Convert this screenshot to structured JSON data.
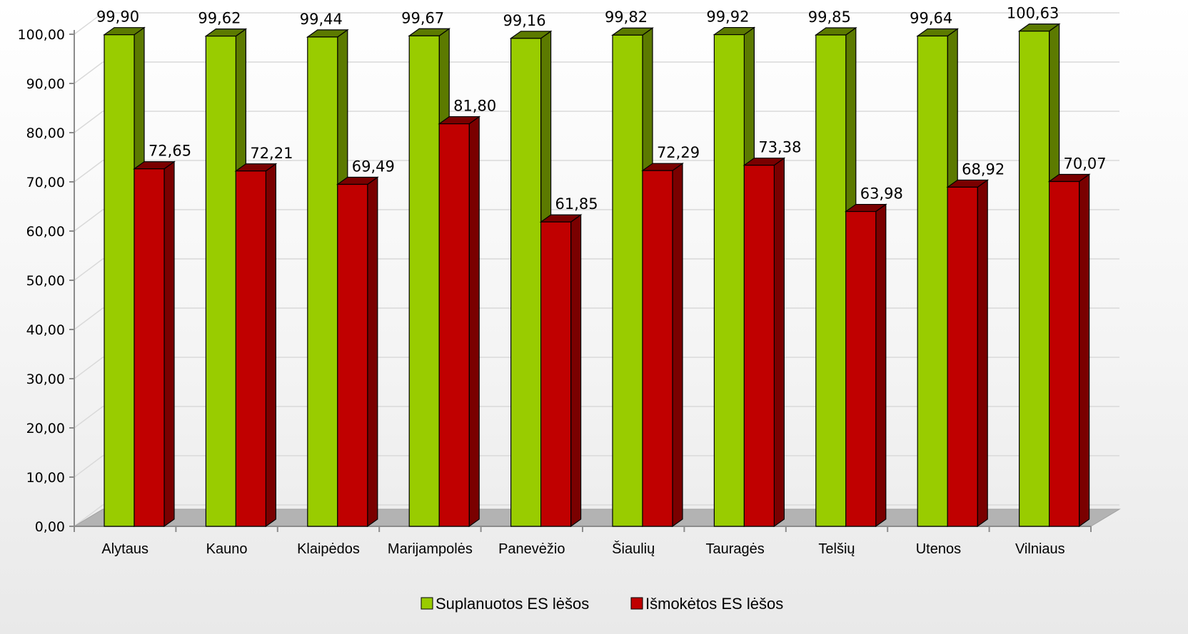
{
  "chart_data": {
    "type": "bar",
    "bar_style": "3d-clustered",
    "categories": [
      "Alytaus",
      "Kauno",
      "Klaipėdos",
      "Marijampolės",
      "Panevėžio",
      "Šiaulių",
      "Tauragės",
      "Telšių",
      "Utenos",
      "Vilniaus"
    ],
    "series": [
      {
        "name": "Suplanuotos ES lėšos",
        "color": "#99cc00",
        "side_color": "#5c7a00",
        "values": [
          99.9,
          99.62,
          99.44,
          99.67,
          99.16,
          99.82,
          99.92,
          99.85,
          99.64,
          100.63
        ],
        "labels": [
          "99,90",
          "99,62",
          "99,44",
          "99,67",
          "99,16",
          "99,82",
          "99,92",
          "99,85",
          "99,64",
          "100,63"
        ]
      },
      {
        "name": "Išmokėtos ES lėšos",
        "color": "#c00000",
        "side_color": "#7a0000",
        "values": [
          72.65,
          72.21,
          69.49,
          81.8,
          61.85,
          72.29,
          73.38,
          63.98,
          68.92,
          70.07
        ],
        "labels": [
          "72,65",
          "72,21",
          "69,49",
          "81,80",
          "61,85",
          "72,29",
          "73,38",
          "63,98",
          "68,92",
          "70,07"
        ]
      }
    ],
    "ylim": [
      0,
      100
    ],
    "y_ticks": [
      0,
      10,
      20,
      30,
      40,
      50,
      60,
      70,
      80,
      90,
      100
    ],
    "y_tick_labels": [
      "0,00",
      "10,00",
      "20,00",
      "30,00",
      "40,00",
      "50,00",
      "60,00",
      "70,00",
      "80,00",
      "90,00",
      "100,00"
    ],
    "grid": true,
    "legend_position": "bottom",
    "floor_color": "#b3b3b3",
    "grid_color": "#d9d9d9"
  }
}
